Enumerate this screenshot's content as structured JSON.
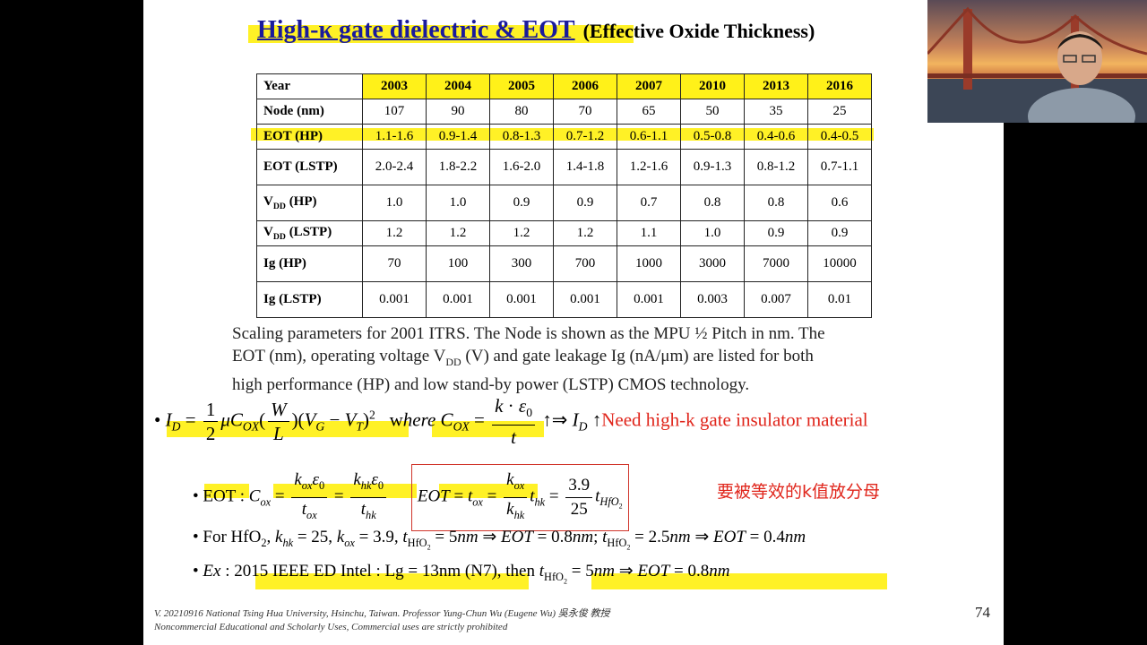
{
  "title": {
    "main": "High-κ gate dielectric & EOT",
    "sub": "(Effective Oxide Thickness)"
  },
  "table": {
    "header_label": "Year",
    "years": [
      "2003",
      "2004",
      "2005",
      "2006",
      "2007",
      "2010",
      "2013",
      "2016"
    ],
    "rows": [
      {
        "label": "Node (nm)",
        "values": [
          "107",
          "90",
          "80",
          "70",
          "65",
          "50",
          "35",
          "25"
        ]
      },
      {
        "label": "EOT (HP)",
        "values": [
          "1.1-1.6",
          "0.9-1.4",
          "0.8-1.3",
          "0.7-1.2",
          "0.6-1.1",
          "0.5-0.8",
          "0.4-0.6",
          "0.4-0.5"
        ]
      },
      {
        "label": "EOT (LSTP)",
        "values": [
          "2.0-2.4",
          "1.8-2.2",
          "1.6-2.0",
          "1.4-1.8",
          "1.2-1.6",
          "0.9-1.3",
          "0.8-1.2",
          "0.7-1.1"
        ]
      },
      {
        "label": "VDD (HP)",
        "values": [
          "1.0",
          "1.0",
          "0.9",
          "0.9",
          "0.7",
          "0.8",
          "0.8",
          "0.6"
        ]
      },
      {
        "label": "VDD (LSTP)",
        "values": [
          "1.2",
          "1.2",
          "1.2",
          "1.2",
          "1.1",
          "1.0",
          "0.9",
          "0.9"
        ]
      },
      {
        "label": "Ig (HP)",
        "values": [
          "70",
          "100",
          "300",
          "700",
          "1000",
          "3000",
          "7000",
          "10000"
        ]
      },
      {
        "label": "Ig (LSTP)",
        "values": [
          "0.001",
          "0.001",
          "0.001",
          "0.001",
          "0.001",
          "0.003",
          "0.007",
          "0.01"
        ]
      }
    ]
  },
  "caption": {
    "line1": "Scaling parameters for 2001 ITRS. The Node is shown as the MPU ½ Pitch in nm. The",
    "line2a": "EOT (nm), operating voltage V",
    "line2_sub": "DD",
    "line2b": " (V) and gate leakage Ig (nA/μm) are listed for both",
    "line3": "high performance (HP) and low stand-by power (LSTP) CMOS technology."
  },
  "formulas": {
    "need_text": "Need high-k gate insulator material",
    "eot_label": "EOT",
    "hfo2_example": "For HfO",
    "ex_text": "2015 IEEE ED Intel : Lg = 13nm (N7), then",
    "chinese_note": "要被等效的k值放分母"
  },
  "footer": {
    "line1": "V. 20210916 National Tsing Hua University, Hsinchu, Taiwan. Professor Yung-Chun Wu (Eugene Wu) 吳永俊 教授",
    "line2": "Noncommercial Educational and Scholarly Uses, Commercial uses are strictly prohibited"
  },
  "page_number": "74"
}
